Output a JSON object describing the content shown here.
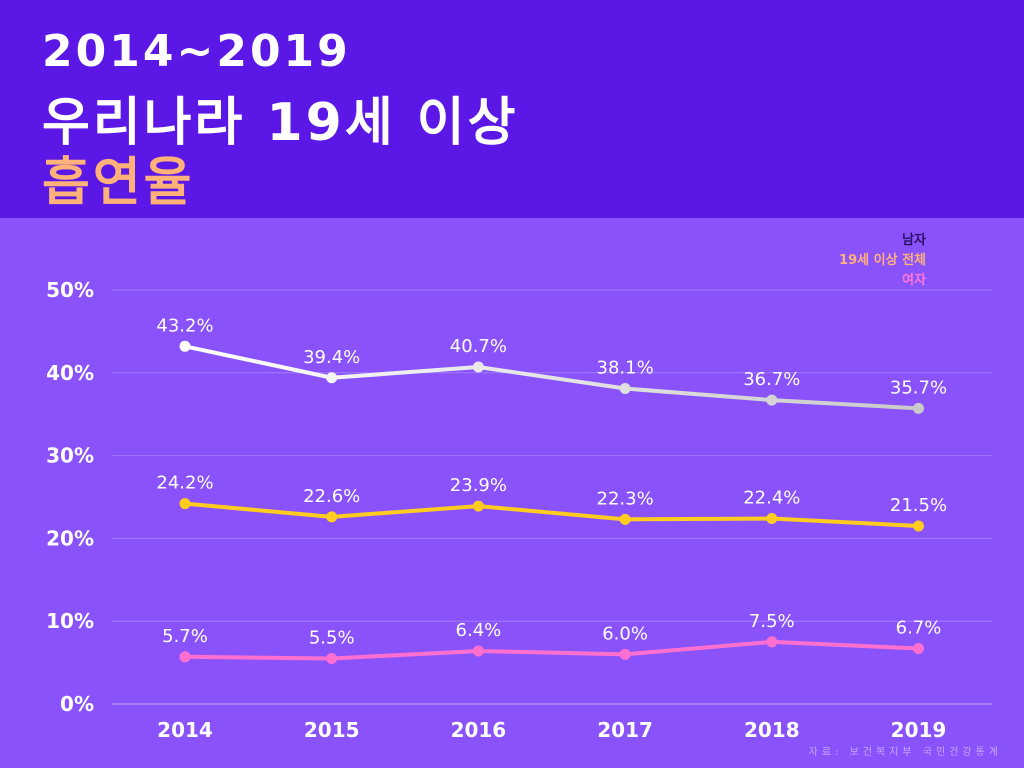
{
  "header": {
    "line1": "2014~2019",
    "line2": "우리나라 19세 이상",
    "line3": "흡연율"
  },
  "source": "자료: 보건복지부 국민건강통계",
  "chart_data": {
    "type": "line",
    "categories": [
      "2014",
      "2015",
      "2016",
      "2017",
      "2018",
      "2019"
    ],
    "ylim": [
      0,
      50
    ],
    "yticks": [
      0,
      10,
      20,
      30,
      40,
      50
    ],
    "ytick_labels": [
      "0%",
      "10%",
      "20%",
      "30%",
      "40%",
      "50%"
    ],
    "grid": true,
    "legend_position": "top-right",
    "series": [
      {
        "name": "남자",
        "values": [
          43.2,
          39.4,
          40.7,
          38.1,
          36.7,
          35.7
        ],
        "labels": [
          "43.2%",
          "39.4%",
          "40.7%",
          "38.1%",
          "36.7%",
          "35.7%"
        ],
        "color_start": "#ffffff",
        "color_end": "#c9c9c9",
        "legend_color": "#2a0f66"
      },
      {
        "name": "19세 이상 전체",
        "values": [
          24.2,
          22.6,
          23.9,
          22.3,
          22.4,
          21.5
        ],
        "labels": [
          "24.2%",
          "22.6%",
          "23.9%",
          "22.3%",
          "22.4%",
          "21.5%"
        ],
        "color_start": "#ffcc1f",
        "color_end": "#ffcc1f",
        "legend_color": "#ffb17a"
      },
      {
        "name": "여자",
        "values": [
          5.7,
          5.5,
          6.4,
          6.0,
          7.5,
          6.7
        ],
        "labels": [
          "5.7%",
          "5.5%",
          "6.4%",
          "6.0%",
          "7.5%",
          "6.7%"
        ],
        "color_start": "#ff6fcf",
        "color_end": "#ff6fcf",
        "legend_color": "#ff77d6"
      }
    ]
  }
}
